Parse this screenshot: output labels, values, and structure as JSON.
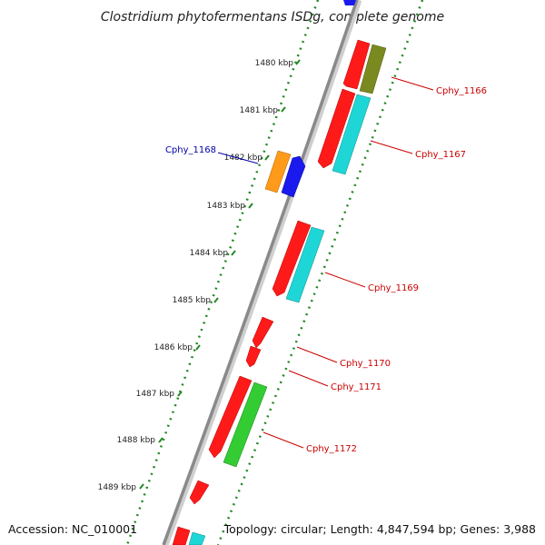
{
  "title": "Clostridium phytofermentans ISDg, complete genome",
  "footer": {
    "accession": "Accession: NC_010001",
    "topology": "Topology: circular; Length: 4,847,594 bp; Genes: 3,988"
  },
  "ticks": [
    "1480 kbp",
    "1481 kbp",
    "1482 kbp",
    "1483 kbp",
    "1484 kbp",
    "1485 kbp",
    "1486 kbp",
    "1487 kbp",
    "1488 kbp",
    "1489 kbp"
  ],
  "gene_labels": [
    {
      "text": "Cphy_1166",
      "color": "#cc0000"
    },
    {
      "text": "Cphy_1167",
      "color": "#cc0000"
    },
    {
      "text": "Cphy_1168",
      "color": "#0000aa"
    },
    {
      "text": "Cphy_1169",
      "color": "#cc0000"
    },
    {
      "text": "Cphy_1170",
      "color": "#cc0000"
    },
    {
      "text": "Cphy_1171",
      "color": "#cc0000"
    },
    {
      "text": "Cphy_1172",
      "color": "#cc0000"
    }
  ],
  "colors": {
    "red": "#ff1a1a",
    "cyan": "#1fd6d6",
    "olive": "#7a8a20",
    "orange": "#ff9a1a",
    "blue": "#1a1aee",
    "green": "#33cc33",
    "backbone": "#8a8a8a",
    "dots": "#228822"
  }
}
